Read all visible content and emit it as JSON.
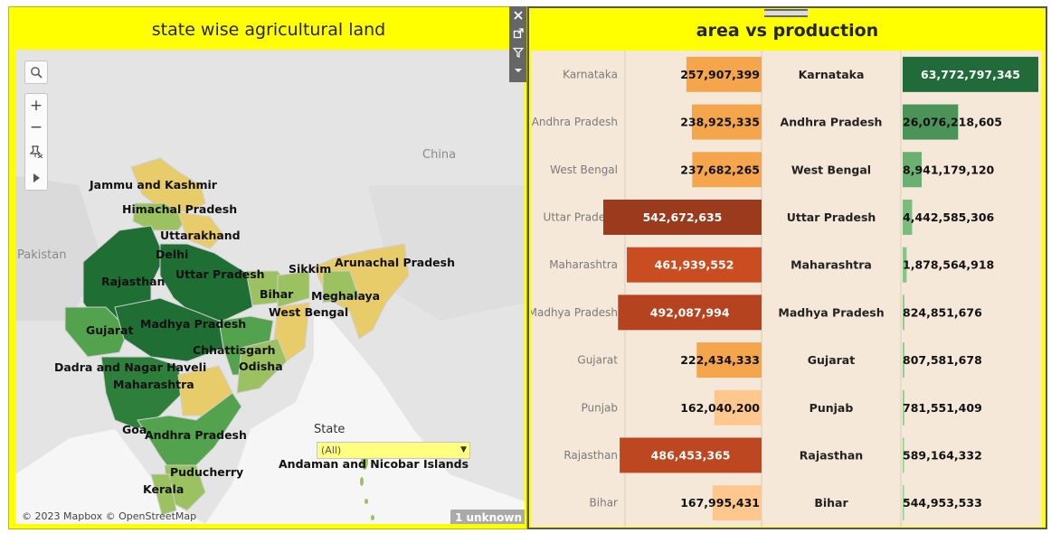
{
  "left_panel": {
    "title": "state wise agricultural land",
    "country_labels": [
      "China",
      "Pakistan"
    ],
    "state_labels": [
      "Jammu and Kashmir",
      "Himachal Pradesh",
      "Uttarakhand",
      "Delhi",
      "Rajasthan",
      "Uttar Pradesh",
      "Sikkim",
      "Arunachal Pradesh",
      "Bihar",
      "Meghalaya",
      "West Bengal",
      "Gujarat",
      "Madhya Pradesh",
      "Chhattisgarh",
      "Odisha",
      "Dadra and Nagar Haveli",
      "Maharashtra",
      "Goa",
      "Andhra Pradesh",
      "Andaman and Nicobar Islands",
      "Puducherry",
      "Kerala"
    ],
    "filter": {
      "label": "State",
      "value": "(All)"
    },
    "copyright": "© 2023 Mapbox © OpenStreetMap",
    "unknown_badge": "1 unknown",
    "map_tools": [
      "search-icon",
      "zoom-in-icon",
      "zoom-out-icon",
      "reset-pin-icon",
      "expand-arrow-icon"
    ]
  },
  "floating_toolbar": [
    "close-icon",
    "popout-icon",
    "filter-icon",
    "more-options-icon"
  ],
  "right_panel": {
    "title": "area  vs production"
  },
  "colors": {
    "panel_background": "#ffff00",
    "chart_background": "#f5e8d9",
    "map_dark_green": "#1f6e34",
    "map_mid_green": "#53a24e",
    "map_light_green": "#9cc160",
    "map_yellow": "#e8cc6a",
    "production_dark": "#216b3a",
    "production_light": "#98d993"
  },
  "chart_data": {
    "type": "bar",
    "categories": [
      "Karnataka",
      "Andhra Pradesh",
      "West Bengal",
      "Uttar Pradesh",
      "Maharashtra",
      "Madhya Pradesh",
      "Gujarat",
      "Punjab",
      "Rajasthan",
      "Bihar"
    ],
    "series": [
      {
        "values": [
          257907399,
          238925335,
          237682265,
          542672635,
          461939552,
          492087994,
          222434333,
          162040200,
          486453365,
          167995431
        ],
        "labels": [
          "257,907,399",
          "238,925,335",
          "237,682,265",
          "542,672,635",
          "461,939,552",
          "492,087,994",
          "222,434,333",
          "162,040,200",
          "486,453,365",
          "167,995,431"
        ],
        "colors": [
          "#f5a64d",
          "#f5a64d",
          "#f5a64d",
          "#9c3a1e",
          "#c94d20",
          "#b6431f",
          "#f5a64d",
          "#fdc78e",
          "#bd4720",
          "#fdc78e"
        ],
        "direction": "right-to-left"
      },
      {
        "values": [
          63772797345,
          26076218605,
          8941179120,
          4442585306,
          1878564918,
          824851676,
          807581678,
          781551409,
          589164332,
          544953533
        ],
        "labels": [
          "63,772,797,345",
          "26,076,218,605",
          "8,941,179,120",
          "4,442,585,306",
          "1,878,564,918",
          "824,851,676",
          "807,581,678",
          "781,551,409",
          "589,164,332",
          "544,953,533"
        ],
        "direction": "left-to-right"
      }
    ],
    "title": "area  vs production",
    "xlabel": "",
    "ylabel": "",
    "grid": false
  }
}
